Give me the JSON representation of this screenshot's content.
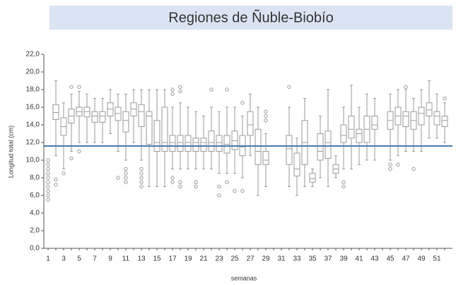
{
  "chart_data": {
    "type": "box",
    "title": "Regiones de Ñuble-Biobío",
    "x_label": "semanas",
    "y_label": "Longitud total (cm)",
    "categories": [
      1,
      null,
      3,
      null,
      5,
      null,
      7,
      null,
      9,
      null,
      11,
      null,
      13,
      null,
      15,
      null,
      17,
      null,
      19,
      null,
      21,
      null,
      23,
      null,
      25,
      null,
      27,
      null,
      29,
      null,
      31,
      null,
      33,
      null,
      35,
      null,
      37,
      null,
      39,
      null,
      41,
      null,
      43,
      null,
      45,
      null,
      47,
      null,
      49,
      null,
      51,
      null
    ],
    "q1": [
      null,
      14.6,
      12.8,
      14.2,
      15,
      14.9,
      14.3,
      14.3,
      15,
      14.5,
      13.2,
      15,
      13.8,
      11.8,
      11,
      11,
      11,
      11,
      11,
      11,
      11,
      11,
      11,
      10.8,
      11.2,
      10.5,
      12.8,
      9.5,
      9.5,
      null,
      null,
      9.5,
      8.2,
      9.5,
      7.5,
      10,
      10.2,
      8.5,
      12,
      12.5,
      12,
      12,
      13.5,
      null,
      13.5,
      14,
      13.8,
      13.5,
      14,
      15,
      14,
      13.8
    ],
    "median": [
      null,
      15.4,
      13.8,
      15,
      15.5,
      15.5,
      15,
      15,
      15.8,
      15.3,
      14.5,
      15.8,
      15.5,
      15,
      12,
      12,
      12,
      12,
      12,
      12,
      12,
      12,
      12,
      11.8,
      12.2,
      11.5,
      14,
      11,
      10,
      null,
      null,
      11.3,
      9,
      12,
      7.9,
      11,
      12,
      9,
      12.8,
      13.5,
      13,
      13.5,
      14,
      null,
      14.5,
      15,
      15,
      14.5,
      15.3,
      15.7,
      15,
      14.5
    ],
    "q3": [
      null,
      16.3,
      14.8,
      15.8,
      16,
      16,
      15.5,
      15.5,
      16.5,
      16,
      15.5,
      16.5,
      16.3,
      15.5,
      14.5,
      16,
      12.8,
      12.8,
      12.8,
      12.5,
      12.5,
      13.3,
      12.8,
      12.8,
      13.3,
      12.8,
      15.5,
      13.5,
      11,
      null,
      null,
      12.8,
      10.8,
      14.5,
      8.5,
      13,
      13.3,
      9.5,
      14,
      15,
      13.5,
      15,
      15,
      null,
      15.5,
      16,
      15.5,
      15.5,
      16,
      16.5,
      15.5,
      15
    ],
    "whisker_low": [
      null,
      10.5,
      9,
      11,
      12,
      12,
      12,
      12,
      13,
      11,
      10,
      12,
      10,
      7,
      7,
      7,
      9,
      9,
      9,
      9,
      9,
      9,
      8.5,
      8.5,
      8.5,
      8,
      10.5,
      6,
      7,
      null,
      null,
      7,
      6,
      7,
      7,
      8,
      7,
      8,
      9,
      9,
      9.5,
      10,
      10,
      null,
      10,
      10.5,
      11,
      11,
      11,
      12.5,
      12.5,
      12
    ],
    "whisker_high": [
      null,
      19,
      16.5,
      17.5,
      17.8,
      17.5,
      17,
      17,
      18,
      17.5,
      17.5,
      18,
      18,
      18,
      18,
      18,
      16,
      16.5,
      16,
      15.5,
      15,
      16,
      15.5,
      16,
      16,
      15,
      17.5,
      16,
      13,
      null,
      null,
      16,
      12.5,
      17,
      9,
      15,
      18,
      10.5,
      16,
      18.5,
      16,
      17.5,
      17,
      null,
      17.5,
      18,
      18,
      17,
      18,
      19,
      17.5,
      16.5
    ],
    "outliers": {
      "x": [
        1,
        1,
        1,
        1,
        1,
        1,
        1,
        1,
        1,
        1,
        2,
        2,
        3,
        4,
        4,
        5,
        5,
        10,
        11,
        11,
        11,
        11,
        13,
        13,
        13,
        13,
        13,
        17,
        17,
        17,
        17,
        18,
        18,
        18,
        18,
        20,
        20,
        22,
        23,
        23,
        24,
        24,
        25,
        26,
        26,
        29,
        29,
        29,
        32,
        39,
        39,
        45,
        45,
        46,
        47,
        48,
        52
      ],
      "y": [
        5.5,
        6,
        6.5,
        7,
        7.5,
        8,
        8.5,
        9,
        9.5,
        10,
        7.2,
        7.8,
        8.5,
        18.3,
        10.2,
        18.3,
        11,
        8,
        9,
        8.5,
        8,
        7.5,
        9,
        8.5,
        8,
        7.5,
        7,
        18,
        17.5,
        8,
        7.5,
        18.3,
        17.8,
        7.5,
        7,
        7.5,
        7,
        18,
        7,
        6,
        18,
        7.5,
        6.5,
        16.5,
        6.5,
        15.5,
        15,
        14.5,
        18.3,
        7,
        7.5,
        9.5,
        9,
        9.5,
        18.3,
        9,
        17
      ]
    },
    "reference_line": 11.6,
    "reference_color": "#4a7ab0",
    "color": "#9a9a9a",
    "ylim": [
      0,
      22
    ],
    "yticks": [
      {
        "value": 0,
        "label": "0,0"
      },
      {
        "value": 2,
        "label": "2,0"
      },
      {
        "value": 4,
        "label": "4,0"
      },
      {
        "value": 6,
        "label": "6,0"
      },
      {
        "value": 8,
        "label": "8,0"
      },
      {
        "value": 10,
        "label": "10,0"
      },
      {
        "value": 12,
        "label": "12,0"
      },
      {
        "value": 14,
        "label": "14,0"
      },
      {
        "value": 16,
        "label": "16,0"
      },
      {
        "value": 18,
        "label": "18,0"
      },
      {
        "value": 20,
        "label": "20,0"
      },
      {
        "value": 22,
        "label": "22,0"
      }
    ]
  }
}
